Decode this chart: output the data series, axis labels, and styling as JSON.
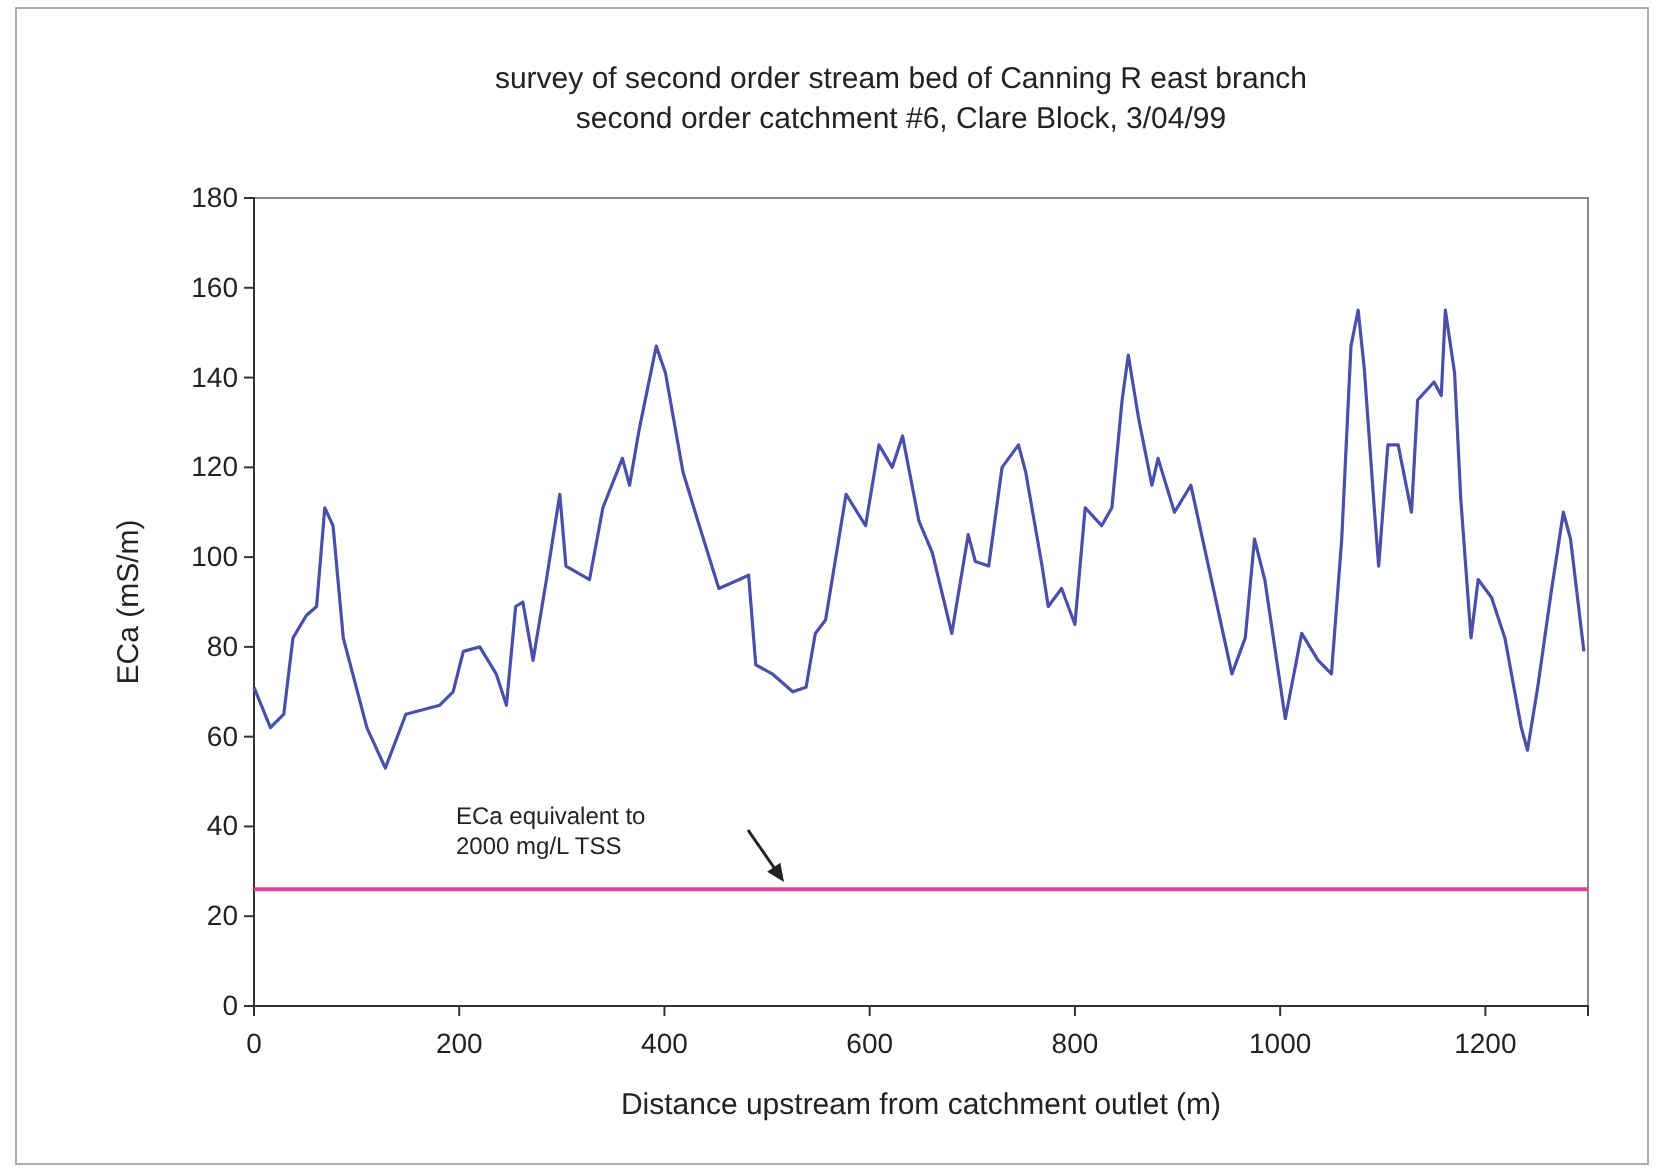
{
  "chart_data": {
    "type": "line",
    "title": "survey of second order stream bed of Canning R east branch\nsecond order catchment #6, Clare Block, 3/04/99",
    "xlabel": "Distance upstream from catchment outlet (m)",
    "ylabel": "ECa (mS/m)",
    "x": [
      0,
      16,
      29,
      38,
      51,
      61,
      69,
      77,
      87,
      110,
      128,
      148,
      181,
      194,
      204,
      220,
      236,
      246,
      255,
      262,
      272,
      285,
      298,
      304,
      327,
      340,
      359,
      366,
      375,
      392,
      401,
      418,
      434,
      453,
      473,
      482,
      489,
      505,
      525,
      538,
      547,
      557,
      577,
      596,
      609,
      622,
      632,
      648,
      661,
      680,
      696,
      703,
      716,
      729,
      745,
      752,
      768,
      774,
      787,
      800,
      810,
      826,
      836,
      846,
      852,
      862,
      875,
      881,
      897,
      913,
      933,
      953,
      966,
      975,
      985,
      1005,
      1021,
      1037,
      1050,
      1060,
      1069,
      1076,
      1082,
      1092,
      1096,
      1105,
      1115,
      1128,
      1134,
      1150,
      1157,
      1161,
      1170,
      1176,
      1186,
      1193,
      1206,
      1219,
      1235,
      1241,
      1251,
      1264,
      1276,
      1283,
      1296
    ],
    "series": [
      {
        "color": "#4a50a8",
        "values": [
          71,
          62,
          65,
          82,
          87,
          89,
          111,
          107,
          82,
          62,
          53,
          65,
          67,
          70,
          79,
          80,
          74,
          67,
          89,
          90,
          77,
          95,
          114,
          98,
          95,
          111,
          122,
          116,
          128,
          147,
          141,
          119,
          107,
          93,
          95,
          96,
          76,
          74,
          70,
          71,
          83,
          86,
          114,
          107,
          125,
          120,
          127,
          108,
          101,
          83,
          105,
          99,
          98,
          120,
          125,
          119,
          98,
          89,
          93,
          85,
          111,
          107,
          111,
          135,
          145,
          131,
          116,
          122,
          110,
          116,
          95,
          74,
          82,
          104,
          95,
          64,
          83,
          77,
          74,
          104,
          147,
          155,
          142,
          110,
          98,
          125,
          125,
          110,
          135,
          139,
          136,
          155,
          141,
          113,
          82,
          95,
          91,
          82,
          62,
          57,
          71,
          92,
          110,
          104,
          79
        ]
      }
    ],
    "xlim": [
      0,
      1300
    ],
    "xticks": [
      0,
      200,
      400,
      600,
      800,
      1000,
      1200
    ],
    "ylim": [
      0,
      180
    ],
    "yticks": [
      0,
      20,
      40,
      60,
      80,
      100,
      120,
      140,
      160,
      180
    ],
    "grid": false,
    "marker": "none",
    "line_style": "solid",
    "ref_lines": [
      {
        "axis": "y",
        "value": 26,
        "color": "#e0409a"
      }
    ],
    "annotations": [
      "ECa equivalent to\n2000 mg/L TSS"
    ]
  }
}
